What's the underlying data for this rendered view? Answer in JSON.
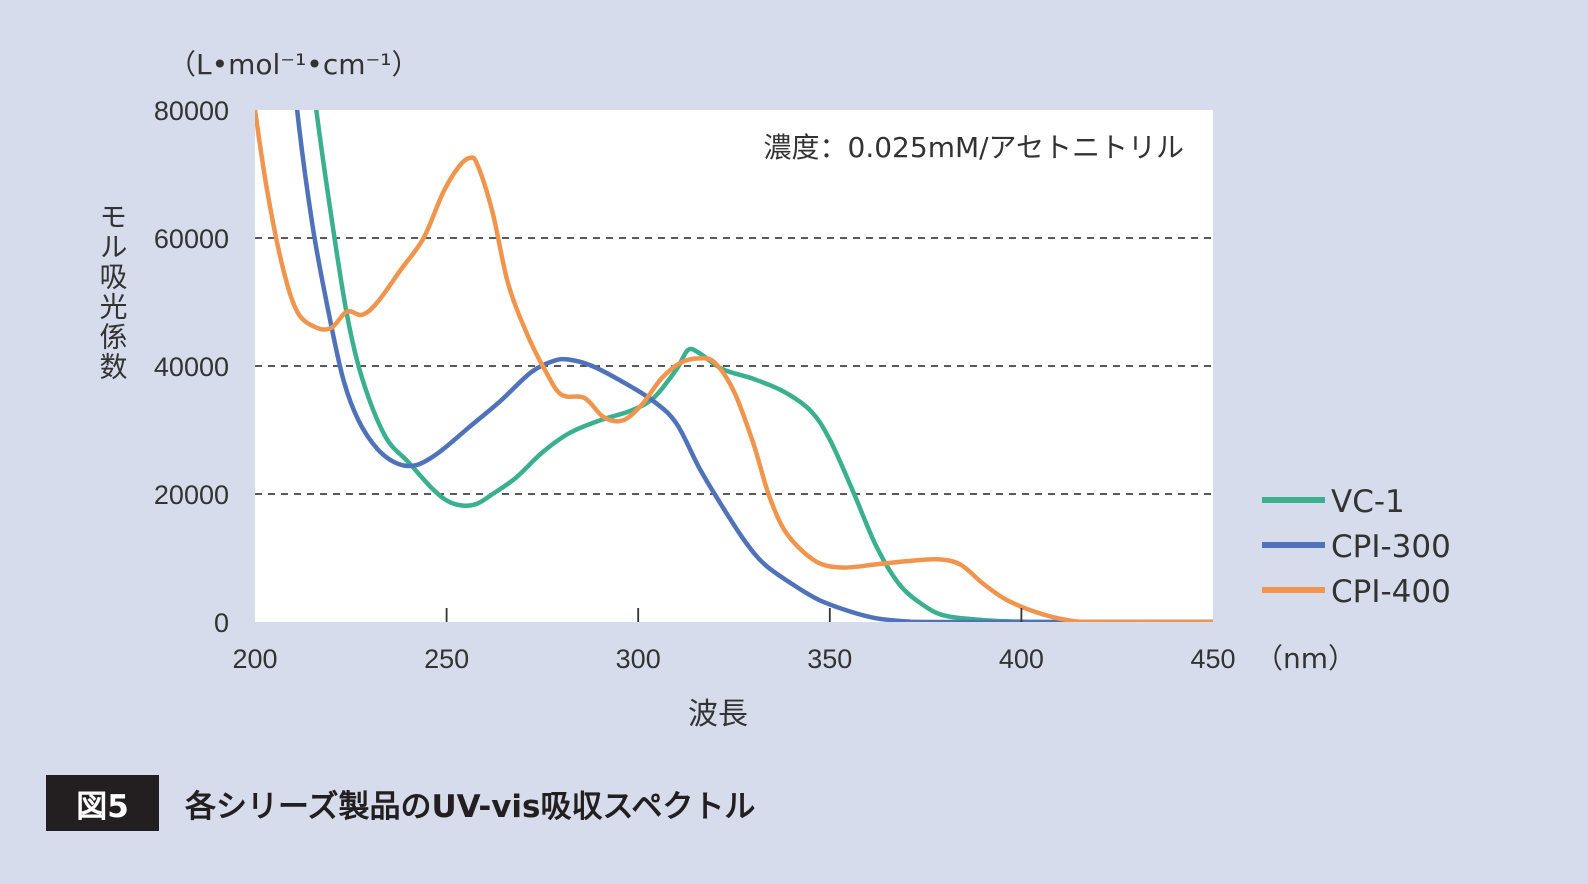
{
  "figure": {
    "label": "図5",
    "title": "各シリーズ製品のUV-vis吸収スペクトル"
  },
  "chart_data": {
    "type": "line",
    "title": "",
    "annotation": "濃度：0.025mM/アセトニトリル",
    "xlabel": "波長",
    "xunit": "（nm）",
    "ylabel": "モル吸光係数",
    "yunit": "（L•mol⁻¹•cm⁻¹）",
    "xlim": [
      200,
      450
    ],
    "ylim": [
      0,
      80000
    ],
    "xticks": [
      200,
      250,
      300,
      350,
      400,
      450
    ],
    "yticks": [
      0,
      20000,
      40000,
      60000,
      80000
    ],
    "grid": "dashed horizontal at 20000, 40000, 60000",
    "legend_position": "right",
    "series": [
      {
        "name": "VC-1",
        "color": "#3bb08f",
        "points": [
          [
            212,
            100000
          ],
          [
            216,
            80000
          ],
          [
            220,
            63000
          ],
          [
            224,
            48000
          ],
          [
            228,
            38000
          ],
          [
            234,
            29000
          ],
          [
            240,
            25000
          ],
          [
            246,
            21000
          ],
          [
            250,
            19000
          ],
          [
            254,
            18200
          ],
          [
            258,
            18500
          ],
          [
            262,
            20000
          ],
          [
            268,
            22500
          ],
          [
            275,
            26500
          ],
          [
            282,
            29500
          ],
          [
            290,
            31500
          ],
          [
            298,
            33000
          ],
          [
            304,
            35000
          ],
          [
            310,
            39500
          ],
          [
            313,
            42500
          ],
          [
            316,
            42000
          ],
          [
            322,
            39500
          ],
          [
            330,
            38000
          ],
          [
            338,
            36000
          ],
          [
            345,
            33000
          ],
          [
            350,
            28500
          ],
          [
            356,
            20500
          ],
          [
            362,
            12000
          ],
          [
            368,
            6000
          ],
          [
            374,
            2800
          ],
          [
            380,
            1000
          ],
          [
            390,
            300
          ],
          [
            400,
            50
          ],
          [
            410,
            0
          ],
          [
            450,
            0
          ]
        ]
      },
      {
        "name": "CPI-300",
        "color": "#4f72b8",
        "points": [
          [
            208,
            100000
          ],
          [
            211,
            80000
          ],
          [
            215,
            62000
          ],
          [
            219,
            49000
          ],
          [
            223,
            38000
          ],
          [
            227,
            31500
          ],
          [
            232,
            27000
          ],
          [
            237,
            24800
          ],
          [
            242,
            24500
          ],
          [
            248,
            26500
          ],
          [
            256,
            30500
          ],
          [
            264,
            34500
          ],
          [
            272,
            39000
          ],
          [
            278,
            40800
          ],
          [
            282,
            41000
          ],
          [
            288,
            40000
          ],
          [
            296,
            37500
          ],
          [
            304,
            34500
          ],
          [
            310,
            31000
          ],
          [
            316,
            24000
          ],
          [
            322,
            18000
          ],
          [
            328,
            12500
          ],
          [
            333,
            9000
          ],
          [
            340,
            6000
          ],
          [
            347,
            3500
          ],
          [
            355,
            1700
          ],
          [
            362,
            600
          ],
          [
            370,
            100
          ],
          [
            380,
            0
          ],
          [
            450,
            0
          ]
        ]
      },
      {
        "name": "CPI-400",
        "color": "#f0954e",
        "points": [
          [
            200,
            80000
          ],
          [
            203,
            68000
          ],
          [
            207,
            56000
          ],
          [
            211,
            48500
          ],
          [
            216,
            46000
          ],
          [
            220,
            46000
          ],
          [
            224,
            48500
          ],
          [
            228,
            48000
          ],
          [
            232,
            50000
          ],
          [
            238,
            55000
          ],
          [
            244,
            60000
          ],
          [
            249,
            67000
          ],
          [
            253,
            71000
          ],
          [
            256,
            72500
          ],
          [
            258,
            71500
          ],
          [
            262,
            64000
          ],
          [
            266,
            53000
          ],
          [
            271,
            45000
          ],
          [
            276,
            39000
          ],
          [
            280,
            35500
          ],
          [
            286,
            35000
          ],
          [
            291,
            32000
          ],
          [
            296,
            31500
          ],
          [
            301,
            34000
          ],
          [
            306,
            38000
          ],
          [
            311,
            40500
          ],
          [
            316,
            41200
          ],
          [
            320,
            40500
          ],
          [
            325,
            36000
          ],
          [
            330,
            28000
          ],
          [
            334,
            20000
          ],
          [
            338,
            14500
          ],
          [
            343,
            11000
          ],
          [
            348,
            9000
          ],
          [
            354,
            8500
          ],
          [
            362,
            9000
          ],
          [
            370,
            9500
          ],
          [
            378,
            9800
          ],
          [
            384,
            9000
          ],
          [
            390,
            6000
          ],
          [
            396,
            3500
          ],
          [
            404,
            1500
          ],
          [
            412,
            300
          ],
          [
            420,
            0
          ],
          [
            450,
            0
          ]
        ]
      }
    ]
  }
}
